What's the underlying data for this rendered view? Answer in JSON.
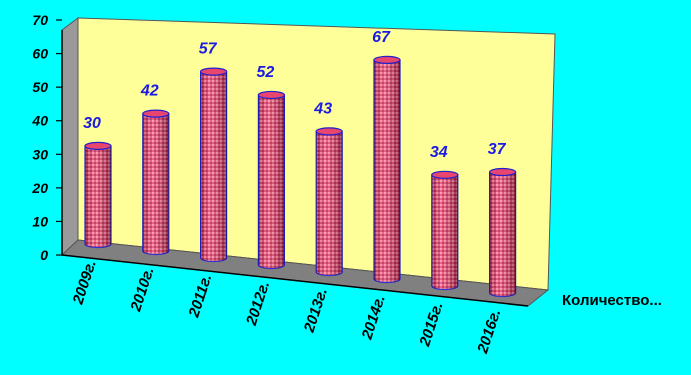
{
  "chart_data": {
    "type": "bar",
    "style": "3d-cylinder",
    "categories": [
      "2009г.",
      "2010г.",
      "2011г.",
      "2012г.",
      "2013г.",
      "2014г.",
      "2015г.",
      "2016г."
    ],
    "series": [
      {
        "name": "Количество...",
        "values": [
          30,
          42,
          57,
          52,
          43,
          67,
          34,
          37
        ]
      }
    ],
    "ylim": [
      0,
      70
    ],
    "yticks": [
      0,
      10,
      20,
      30,
      40,
      50,
      60,
      70
    ],
    "grid": false,
    "data_labels": true
  },
  "colors": {
    "background": "#00ffff",
    "back_wall": "#ffff99",
    "side_wall": "#9a9a9a",
    "floor": "#808080",
    "bar_fill": "#e8456f",
    "bar_outline": "#2020cc",
    "value_label": "#1a1ae6"
  }
}
